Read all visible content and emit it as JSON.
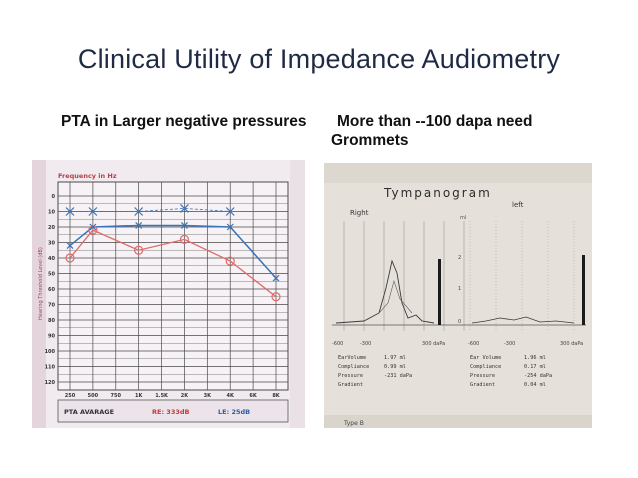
{
  "slide": {
    "title": "Clinical Utility of Impedance Audiometry",
    "left_caption": "PTA in Larger negative pressures",
    "right_caption": "More than --100 dapa need Grommets"
  },
  "audiogram": {
    "header": "Frequency in Hz",
    "side_label": "Hearing Threshold Level (dB)",
    "y_ticks": [
      "0",
      "10",
      "20",
      "30",
      "40",
      "50",
      "60",
      "70",
      "80",
      "90",
      "100",
      "110",
      "120"
    ],
    "x_ticks": [
      "250",
      "500",
      "750",
      "1K",
      "1.5K",
      "2K",
      "3K",
      "4K",
      "6K",
      "8K"
    ],
    "footer_label": "PTA AVARAGE",
    "re_label": "RE: 333dB",
    "le_label": "LE: 25dB",
    "colors": {
      "right_ear": "#e06a6a",
      "left_ear": "#3b73b8",
      "grid": "#4a4a4a"
    }
  },
  "tympanogram": {
    "title": "Tympanogram",
    "right_label": "Right",
    "left_label": "left",
    "ml_label": "ml",
    "y_ticks": [
      "2",
      "1",
      "0"
    ],
    "x_left": [
      "-600",
      "-300",
      "300 daPa"
    ],
    "x_right": [
      "-600",
      "-300",
      "300 daPa"
    ],
    "right_rows": [
      {
        "k": "EarVolume",
        "v": "1.97 ml"
      },
      {
        "k": "Compliance",
        "v": "0.99 ml"
      },
      {
        "k": "Pressure",
        "v": "-231 daPa"
      },
      {
        "k": "Gradient",
        "v": ""
      }
    ],
    "left_rows": [
      {
        "k": "Ear Volume",
        "v": "1.96 ml"
      },
      {
        "k": "Compliance",
        "v": "0.17 ml"
      },
      {
        "k": "Pressure",
        "v": "-254 daPa"
      },
      {
        "k": "Gradient",
        "v": "0.04 ml"
      }
    ],
    "footer": "Type B"
  }
}
